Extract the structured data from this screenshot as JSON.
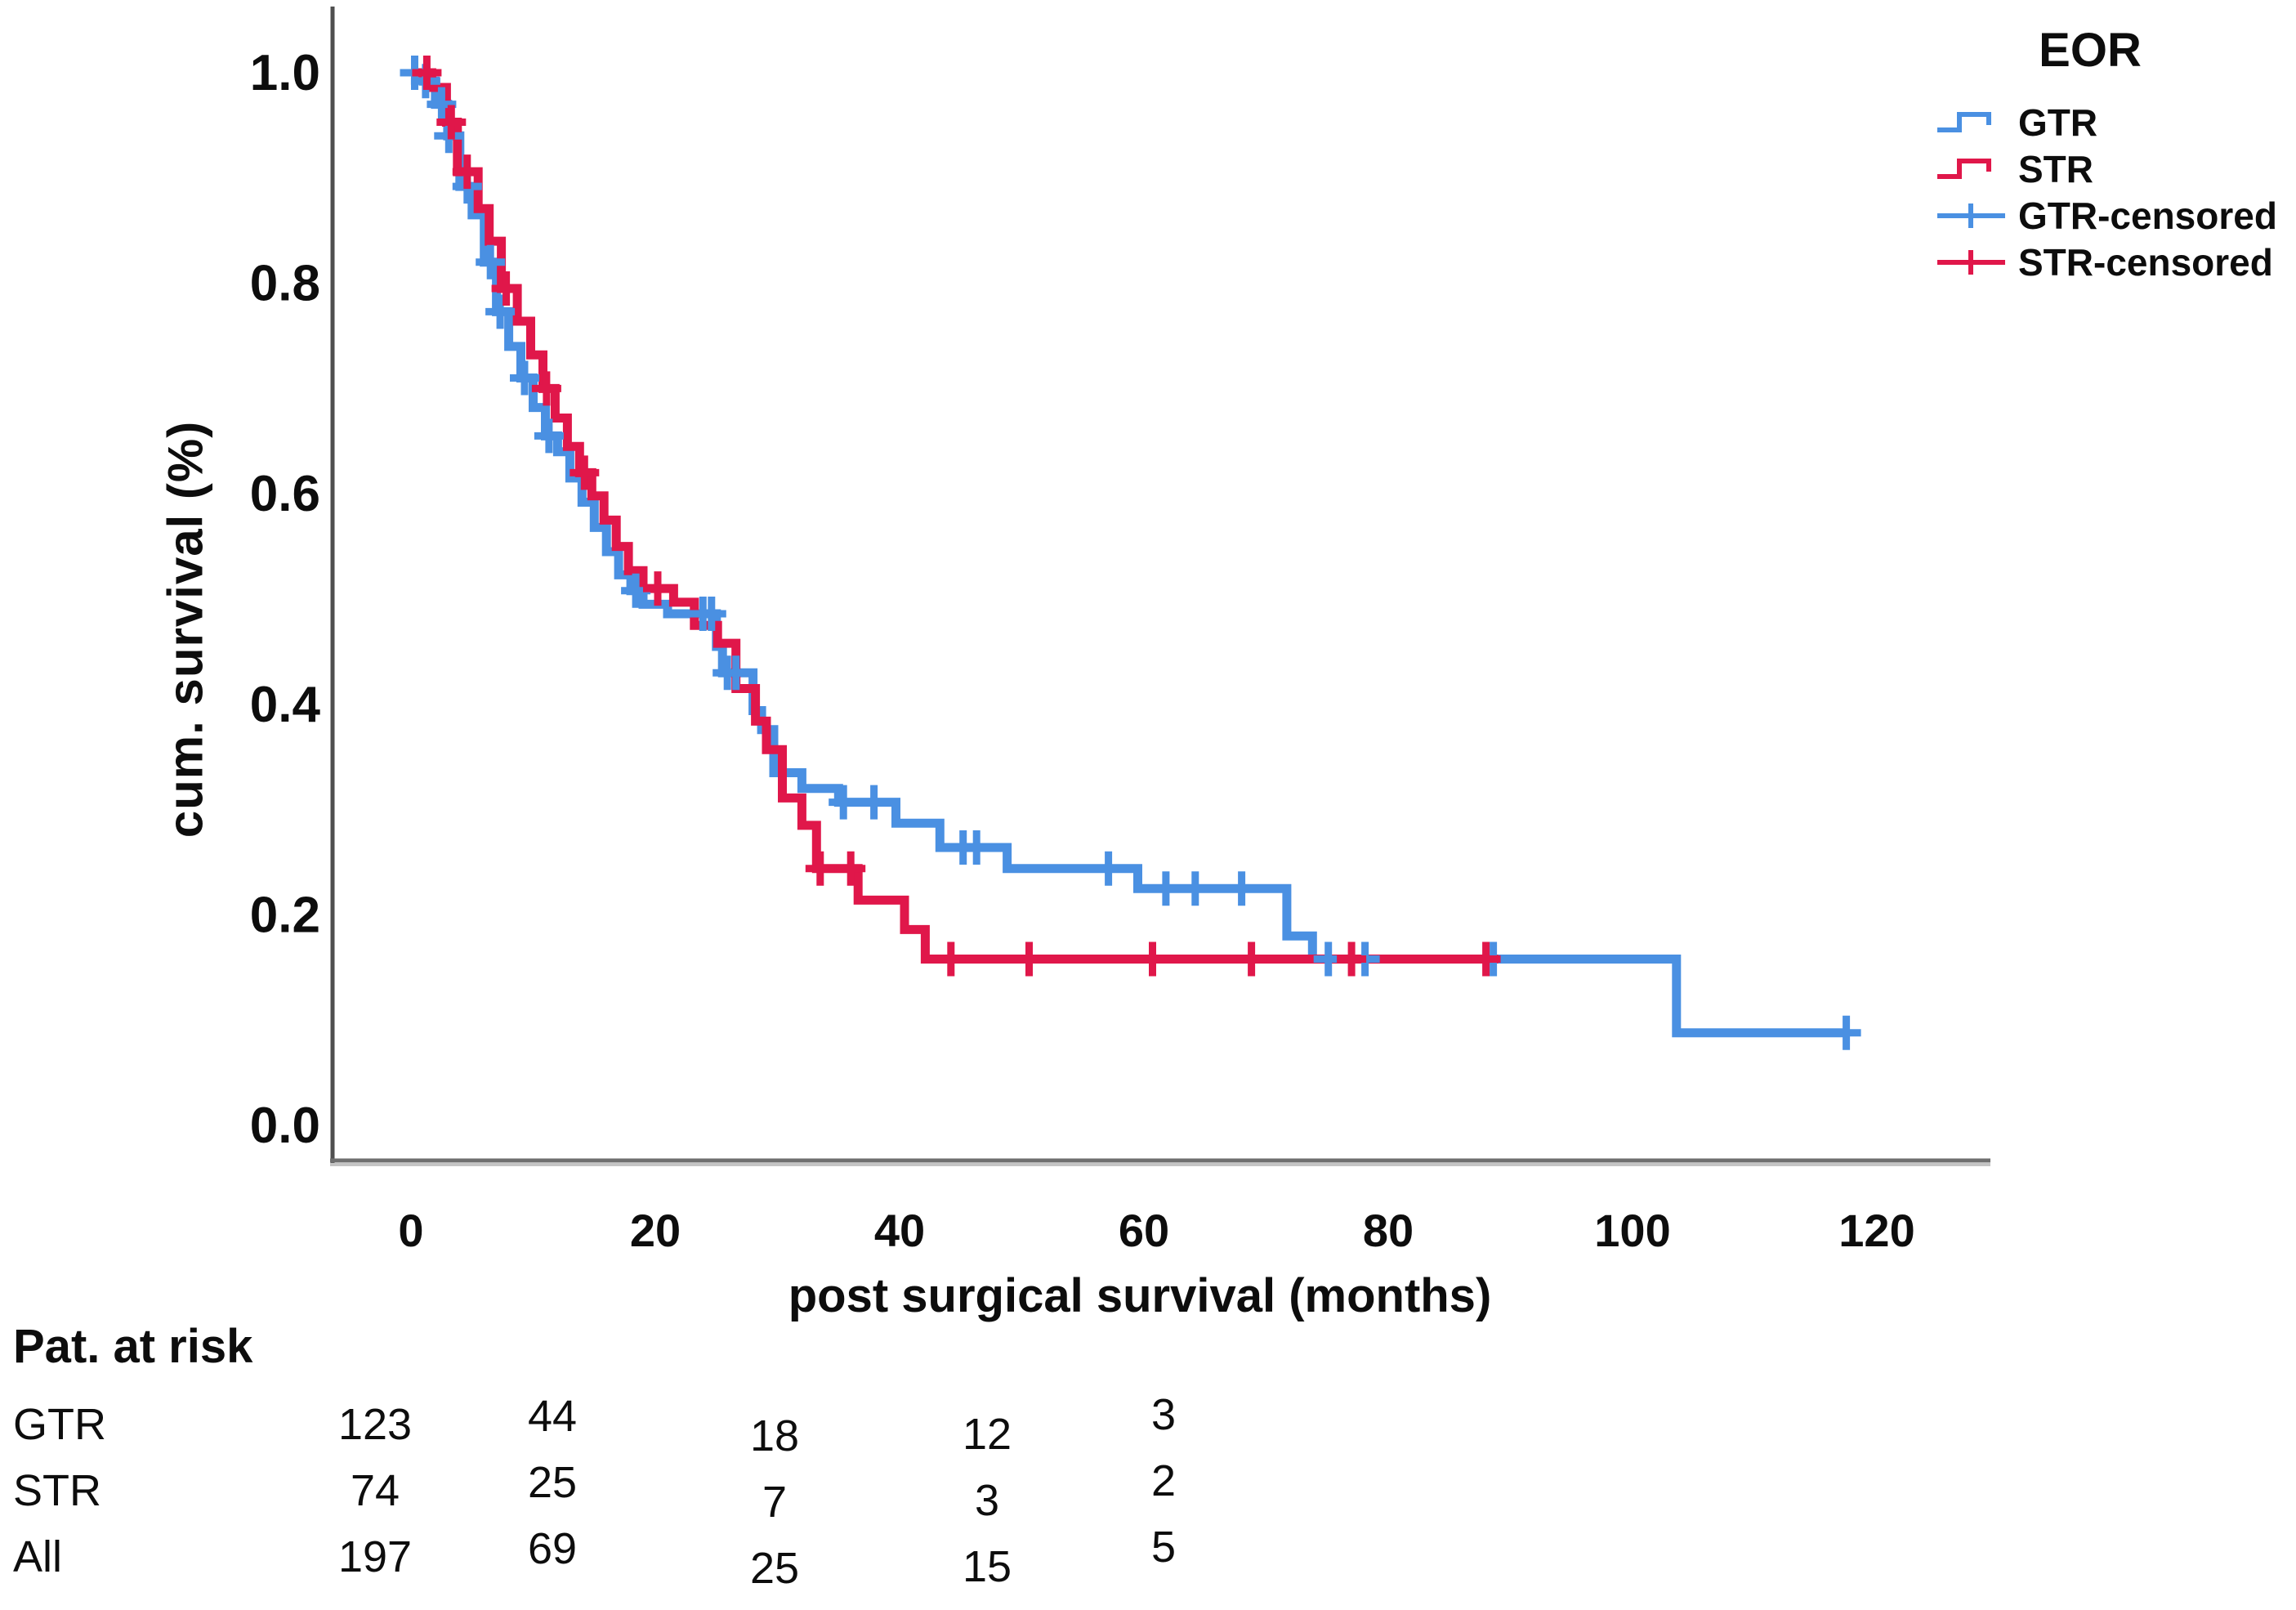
{
  "chart_data": {
    "type": "line",
    "subtype": "kaplan-meier-step",
    "title": "",
    "xlabel": "post surgical survival (months)",
    "ylabel": "cum. survival (%)",
    "xlim": [
      0,
      120
    ],
    "ylim": [
      0.0,
      1.0
    ],
    "x_ticks": [
      0,
      20,
      40,
      60,
      80,
      100,
      120
    ],
    "y_ticks": [
      1.0,
      0.8,
      0.6,
      0.4,
      0.2,
      0.0
    ],
    "grid": false,
    "legend_position": "top-right",
    "series": [
      {
        "name": "GTR",
        "color": "#4a90e2",
        "end_time": 117.5,
        "steps": [
          [
            0,
            1.0
          ],
          [
            1,
            0.992
          ],
          [
            2,
            0.97
          ],
          [
            3,
            0.94
          ],
          [
            4,
            0.892
          ],
          [
            5,
            0.865
          ],
          [
            6,
            0.82
          ],
          [
            7,
            0.773
          ],
          [
            8,
            0.74
          ],
          [
            9,
            0.71
          ],
          [
            10,
            0.682
          ],
          [
            11,
            0.655
          ],
          [
            12,
            0.64
          ],
          [
            13,
            0.615
          ],
          [
            14,
            0.592
          ],
          [
            15,
            0.568
          ],
          [
            16,
            0.545
          ],
          [
            17,
            0.523
          ],
          [
            18,
            0.508
          ],
          [
            19,
            0.495
          ],
          [
            21,
            0.486
          ],
          [
            25,
            0.455
          ],
          [
            25.5,
            0.43
          ],
          [
            28,
            0.394
          ],
          [
            28.7,
            0.376
          ],
          [
            29.7,
            0.335
          ],
          [
            32,
            0.32
          ],
          [
            35,
            0.307
          ],
          [
            39.7,
            0.287
          ],
          [
            43.3,
            0.264
          ],
          [
            48.8,
            0.244
          ],
          [
            59.5,
            0.225
          ],
          [
            71.7,
            0.18
          ],
          [
            73.8,
            0.158
          ],
          [
            103.6,
            0.088
          ]
        ],
        "censored": [
          [
            0.3,
            1.0
          ],
          [
            1.2,
            0.992
          ],
          [
            2.5,
            0.97
          ],
          [
            3.1,
            0.94
          ],
          [
            4.6,
            0.892
          ],
          [
            6.5,
            0.82
          ],
          [
            7.3,
            0.773
          ],
          [
            9.3,
            0.71
          ],
          [
            11.3,
            0.655
          ],
          [
            18.4,
            0.508
          ],
          [
            23.9,
            0.486
          ],
          [
            24.6,
            0.486
          ],
          [
            25.9,
            0.43
          ],
          [
            26.6,
            0.43
          ],
          [
            35.4,
            0.307
          ],
          [
            37.9,
            0.307
          ],
          [
            45.2,
            0.264
          ],
          [
            46.3,
            0.264
          ],
          [
            57.1,
            0.244
          ],
          [
            61.8,
            0.225
          ],
          [
            64.2,
            0.225
          ],
          [
            68.0,
            0.225
          ],
          [
            75.1,
            0.158
          ],
          [
            78.1,
            0.158
          ],
          [
            88.6,
            0.158
          ],
          [
            117.5,
            0.088
          ]
        ]
      },
      {
        "name": "STR",
        "color": "#e0174a",
        "end_time": 89,
        "steps": [
          [
            0,
            1.0
          ],
          [
            1.7,
            0.986
          ],
          [
            2.9,
            0.953
          ],
          [
            3.8,
            0.906
          ],
          [
            5.5,
            0.871
          ],
          [
            6.4,
            0.84
          ],
          [
            7.4,
            0.795
          ],
          [
            8.7,
            0.764
          ],
          [
            9.8,
            0.732
          ],
          [
            10.8,
            0.7
          ],
          [
            11.8,
            0.672
          ],
          [
            12.8,
            0.645
          ],
          [
            13.8,
            0.62
          ],
          [
            14.8,
            0.598
          ],
          [
            15.8,
            0.575
          ],
          [
            16.8,
            0.55
          ],
          [
            17.8,
            0.527
          ],
          [
            19,
            0.51
          ],
          [
            21.5,
            0.497
          ],
          [
            23.2,
            0.475
          ],
          [
            25.1,
            0.458
          ],
          [
            26.6,
            0.415
          ],
          [
            28.2,
            0.384
          ],
          [
            29.1,
            0.357
          ],
          [
            30.4,
            0.311
          ],
          [
            32,
            0.285
          ],
          [
            33.2,
            0.244
          ],
          [
            36.6,
            0.214
          ],
          [
            40.4,
            0.186
          ],
          [
            42.1,
            0.158
          ]
        ],
        "censored": [
          [
            1.3,
            1.0
          ],
          [
            3.3,
            0.953
          ],
          [
            4.6,
            0.906
          ],
          [
            7.8,
            0.795
          ],
          [
            11.1,
            0.7
          ],
          [
            14.2,
            0.62
          ],
          [
            20.2,
            0.51
          ],
          [
            33.5,
            0.244
          ],
          [
            36.0,
            0.244
          ],
          [
            44.2,
            0.158
          ],
          [
            50.6,
            0.158
          ],
          [
            60.7,
            0.158
          ],
          [
            68.8,
            0.158
          ],
          [
            77.0,
            0.158
          ],
          [
            88.0,
            0.158
          ]
        ]
      }
    ]
  },
  "legend": {
    "title": "EOR",
    "items": [
      {
        "label": "GTR",
        "series": "GTR",
        "glyph": "step-line"
      },
      {
        "label": "STR",
        "series": "STR",
        "glyph": "step-line"
      },
      {
        "label": "GTR-censored",
        "series": "GTR",
        "glyph": "censor-plus"
      },
      {
        "label": "STR-censored",
        "series": "STR",
        "glyph": "censor-plus"
      }
    ]
  },
  "risk_table": {
    "title": "Pat. at risk",
    "rows": [
      {
        "label": "GTR",
        "values": [
          "123",
          "44",
          "18",
          "12",
          "3"
        ]
      },
      {
        "label": "STR",
        "values": [
          "74",
          "25",
          "7",
          "3",
          "2"
        ]
      },
      {
        "label": "All",
        "values": [
          "197",
          "69",
          "25",
          "15",
          "5"
        ]
      }
    ]
  }
}
